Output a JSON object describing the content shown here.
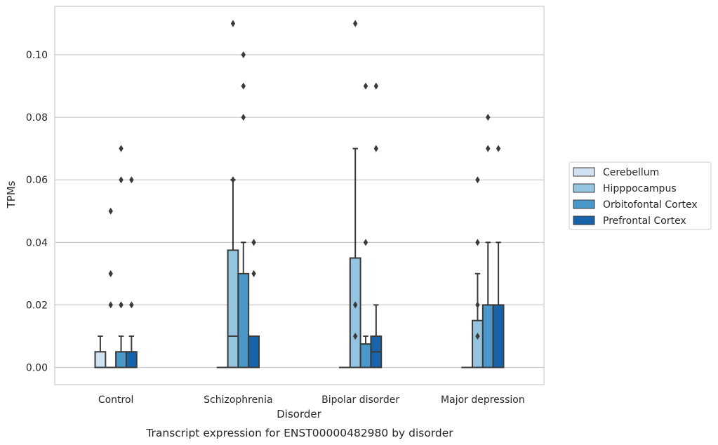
{
  "chart_data": {
    "type": "box",
    "title": "Transcript expression for ENST00000482980 by disorder",
    "xlabel": "Disorder",
    "ylabel": "TPMs",
    "ylim": [
      -0.0055,
      0.1155
    ],
    "yticks": [
      0.0,
      0.02,
      0.04,
      0.06,
      0.08,
      0.1
    ],
    "ytick_labels": [
      "0.00",
      "0.02",
      "0.04",
      "0.06",
      "0.08",
      "0.10"
    ],
    "grid": "horizontal",
    "legend_position": "right",
    "categories": [
      "Control",
      "Schizophrenia",
      "Bipolar disorder",
      "Major depression"
    ],
    "series": [
      {
        "name": "Cerebellum",
        "color": "#d0e1f2",
        "boxes": [
          {
            "q1": 0.0,
            "median": 0.0,
            "q3": 0.005,
            "whislo": 0.0,
            "whishi": 0.01,
            "fliers": []
          },
          {
            "q1": 0.0,
            "median": 0.0,
            "q3": 0.0,
            "whislo": 0.0,
            "whishi": 0.0,
            "fliers": []
          },
          {
            "q1": 0.0,
            "median": 0.0,
            "q3": 0.0,
            "whislo": 0.0,
            "whishi": 0.0,
            "fliers": []
          },
          {
            "q1": 0.0,
            "median": 0.0,
            "q3": 0.0,
            "whislo": 0.0,
            "whishi": 0.0,
            "fliers": []
          }
        ]
      },
      {
        "name": "Hipppocampus",
        "color": "#94c4df",
        "boxes": [
          {
            "q1": 0.0,
            "median": 0.0,
            "q3": 0.0,
            "whislo": 0.0,
            "whishi": 0.0,
            "fliers": [
              0.02,
              0.03,
              0.05
            ]
          },
          {
            "q1": 0.0,
            "median": 0.01,
            "q3": 0.0375,
            "whislo": 0.0,
            "whishi": 0.06,
            "fliers": [
              0.06,
              0.11
            ]
          },
          {
            "q1": 0.0,
            "median": 0.0,
            "q3": 0.035,
            "whislo": 0.0,
            "whishi": 0.07,
            "fliers": [
              0.01,
              0.02,
              0.11
            ]
          },
          {
            "q1": 0.0,
            "median": 0.0,
            "q3": 0.015,
            "whislo": 0.0,
            "whishi": 0.03,
            "fliers": [
              0.01,
              0.02,
              0.04,
              0.06
            ]
          }
        ]
      },
      {
        "name": "Orbitofontal Cortex",
        "color": "#4a98c9",
        "boxes": [
          {
            "q1": 0.0,
            "median": 0.0,
            "q3": 0.005,
            "whislo": 0.0,
            "whishi": 0.01,
            "fliers": [
              0.02,
              0.06,
              0.07
            ]
          },
          {
            "q1": 0.0,
            "median": 0.0,
            "q3": 0.03,
            "whislo": 0.0,
            "whishi": 0.04,
            "fliers": [
              0.08,
              0.09,
              0.1
            ]
          },
          {
            "q1": 0.0,
            "median": 0.0,
            "q3": 0.0075,
            "whislo": 0.0,
            "whishi": 0.01,
            "fliers": [
              0.04,
              0.09
            ]
          },
          {
            "q1": 0.0,
            "median": 0.0,
            "q3": 0.02,
            "whislo": 0.0,
            "whishi": 0.04,
            "fliers": [
              0.07,
              0.08
            ]
          }
        ]
      },
      {
        "name": "Prefrontal Cortex",
        "color": "#1764ab",
        "boxes": [
          {
            "q1": 0.0,
            "median": 0.0,
            "q3": 0.005,
            "whislo": 0.0,
            "whishi": 0.01,
            "fliers": [
              0.02,
              0.06
            ]
          },
          {
            "q1": 0.0,
            "median": 0.0,
            "q3": 0.01,
            "whislo": 0.0,
            "whishi": 0.01,
            "fliers": [
              0.03,
              0.04
            ]
          },
          {
            "q1": 0.0,
            "median": 0.005,
            "q3": 0.01,
            "whislo": 0.0,
            "whishi": 0.02,
            "fliers": [
              0.07,
              0.09
            ]
          },
          {
            "q1": 0.0,
            "median": 0.0,
            "q3": 0.02,
            "whislo": 0.0,
            "whishi": 0.04,
            "fliers": [
              0.07
            ]
          }
        ]
      }
    ]
  }
}
